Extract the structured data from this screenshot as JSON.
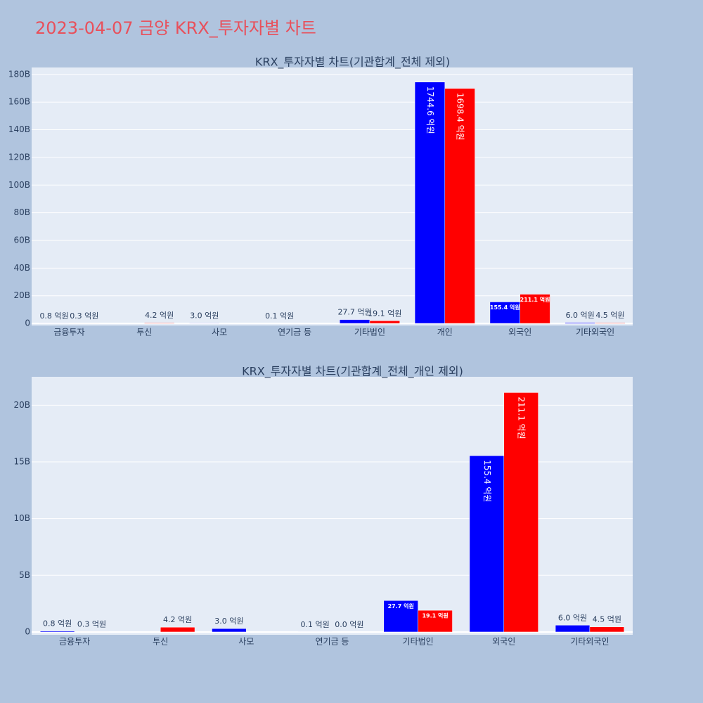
{
  "title": "2023-04-07 금양 KRX_투자자별 차트",
  "chart_data": [
    {
      "type": "bar",
      "title": "KRX_투자자별 차트(기관합계_전체 제외)",
      "categories": [
        "금융투자",
        "투신",
        "사모",
        "연기금 등",
        "기타법인",
        "개인",
        "외국인",
        "기타외국인"
      ],
      "series": [
        {
          "color": "#0000ff",
          "values": [
            80000000,
            null,
            300000000,
            10000000,
            2770000000,
            174460000000,
            15540000000,
            600000000
          ],
          "value_labels": [
            "0.8 억원",
            null,
            "3.0 억원",
            "0.1 억원",
            "27.7 억원",
            "1744.6 억원",
            "155.4 억원",
            "6.0 억원"
          ]
        },
        {
          "color": "#ff0000",
          "values": [
            30000000,
            420000000,
            null,
            null,
            1910000000,
            169840000000,
            21110000000,
            450000000
          ],
          "value_labels": [
            "0.3 억원",
            "4.2 억원",
            null,
            null,
            "19.1 억원",
            "1698.4 억원",
            "211.1 억원",
            "4.5 억원"
          ]
        }
      ],
      "ylim": [
        -1500000000,
        185000000000
      ],
      "yticks": [
        0,
        {
          "value": 20000000000,
          "label": "20B"
        },
        {
          "value": 40000000000,
          "label": "40B"
        },
        {
          "value": 60000000000,
          "label": "60B"
        },
        {
          "value": 80000000000,
          "label": "80B"
        },
        {
          "value": 100000000000,
          "label": "100B"
        },
        {
          "value": 120000000000,
          "label": "120B"
        },
        {
          "value": 140000000000,
          "label": "140B"
        },
        {
          "value": 160000000000,
          "label": "160B"
        },
        {
          "value": 180000000000,
          "label": "180B"
        }
      ],
      "grid": true
    },
    {
      "type": "bar",
      "title": "KRX_투자자별 차트(기관합계_전체_개인 제외)",
      "categories": [
        "금융투자",
        "투신",
        "사모",
        "연기금 등",
        "기타법인",
        "외국인",
        "기타외국인"
      ],
      "series": [
        {
          "color": "#0000ff",
          "values": [
            80000000,
            null,
            300000000,
            10000000,
            2770000000,
            15540000000,
            600000000
          ],
          "value_labels": [
            "0.8 억원",
            null,
            "3.0 억원",
            "0.1 억원",
            "27.7 억원",
            "155.4 억원",
            "6.0 억원"
          ]
        },
        {
          "color": "#ff0000",
          "values": [
            30000000,
            420000000,
            null,
            0,
            1910000000,
            21110000000,
            450000000
          ],
          "value_labels": [
            "0.3 억원",
            "4.2 억원",
            null,
            "0.0 억원",
            "19.1 억원",
            "211.1 억원",
            "4.5 억원"
          ]
        }
      ],
      "ylim": [
        -250000000,
        22500000000
      ],
      "yticks": [
        0,
        {
          "value": 5000000000,
          "label": "5B"
        },
        {
          "value": 10000000000,
          "label": "10B"
        },
        {
          "value": 15000000000,
          "label": "15B"
        },
        {
          "value": 20000000000,
          "label": "20B"
        }
      ],
      "grid": true
    }
  ]
}
